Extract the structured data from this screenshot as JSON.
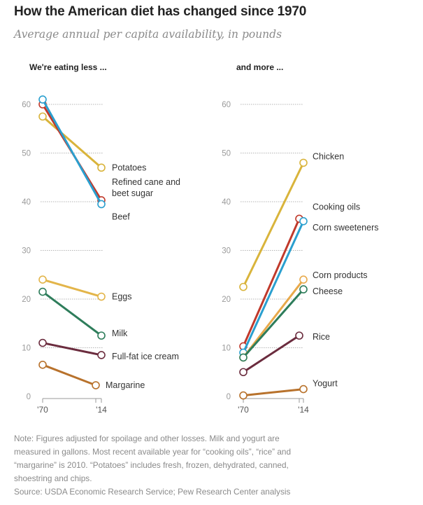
{
  "header": {
    "title": "How the American diet has changed since 1970",
    "subtitle": "Average annual per capita availability, in pounds"
  },
  "chart_data": [
    {
      "type": "line",
      "title": "We're eating less ...",
      "x": [
        "'70",
        "'14"
      ],
      "ylim": [
        0,
        60
      ],
      "yticks": [
        0,
        10,
        20,
        30,
        40,
        50,
        60
      ],
      "grid": true,
      "series": [
        {
          "name": "Potatoes",
          "values": [
            57.5,
            47
          ],
          "color": "#d9b43b"
        },
        {
          "name": "Refined cane and beet sugar",
          "label_lines": [
            "Refined cane and",
            "beet sugar"
          ],
          "values": [
            60,
            40.3
          ],
          "color": "#c0392b"
        },
        {
          "name": "Beef",
          "values": [
            61,
            39.5
          ],
          "color": "#2a9fcf"
        },
        {
          "name": "Eggs",
          "values": [
            24,
            20.5
          ],
          "color": "#e3b54a"
        },
        {
          "name": "Milk",
          "values": [
            21.5,
            12.5
          ],
          "color": "#2e7d5b"
        },
        {
          "name": "Full-fat ice cream",
          "values": [
            11,
            8.5
          ],
          "color": "#6b2c3e"
        },
        {
          "name": "Margarine",
          "values": [
            6.5,
            2.3
          ],
          "color": "#b8722c",
          "last_year": 2010
        }
      ]
    },
    {
      "type": "line",
      "title": "and more ...",
      "x": [
        "'70",
        "'14"
      ],
      "ylim": [
        0,
        60
      ],
      "yticks": [
        0,
        10,
        20,
        30,
        40,
        50,
        60
      ],
      "grid": true,
      "series": [
        {
          "name": "Chicken",
          "values": [
            22.5,
            48
          ],
          "color": "#d9b43b"
        },
        {
          "name": "Cooking oils",
          "values": [
            10.3,
            36.5
          ],
          "color": "#c0392b",
          "last_year": 2010
        },
        {
          "name": "Corn sweeteners",
          "values": [
            9,
            36
          ],
          "color": "#2a9fcf"
        },
        {
          "name": "Corn products",
          "values": [
            8,
            24
          ],
          "color": "#e8a94a"
        },
        {
          "name": "Cheese",
          "values": [
            8,
            22
          ],
          "color": "#2e7d5b"
        },
        {
          "name": "Rice",
          "values": [
            5,
            12.5
          ],
          "color": "#6b2c3e",
          "last_year": 2010
        },
        {
          "name": "Yogurt",
          "values": [
            0.2,
            1.5
          ],
          "color": "#b8722c"
        }
      ]
    }
  ],
  "footer": {
    "note_lines": [
      "Note: Figures adjusted for spoilage and other losses. Milk and yogurt are",
      "measured in gallons. Most recent available year for “cooking oils”, “rice” and",
      "“margarine” is 2010. “Potatoes” includes fresh, frozen, dehydrated, canned,",
      "shoestring and chips."
    ],
    "source": "Source: USDA Economic Research Service; Pew Research Center analysis"
  }
}
